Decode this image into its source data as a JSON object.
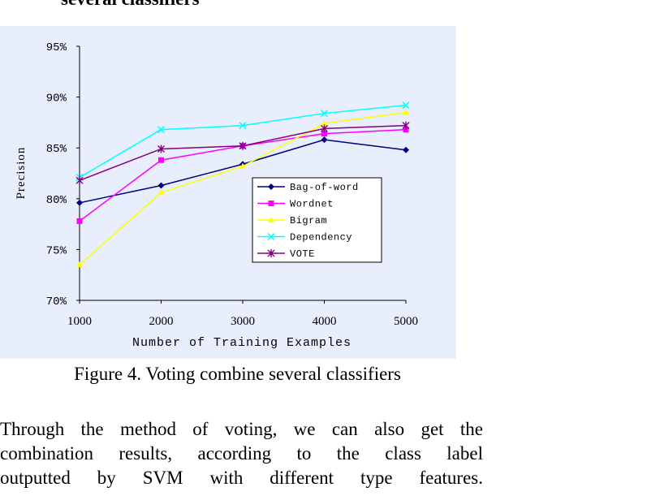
{
  "paper": {
    "cut_heading": "several classifiers",
    "caption": "Figure 4. Voting combine several classifiers",
    "body_lines": [
      "Through the method of voting, we can also get the",
      "combination results, according to the class label",
      "outputted by SVM with different type features."
    ]
  },
  "colors": {
    "plot_background": "#e8eefc",
    "axis": "#000000"
  },
  "chart_data": {
    "type": "line",
    "title": "",
    "xlabel": "Number of Training Examples",
    "ylabel": "Precision",
    "x": [
      1000,
      2000,
      3000,
      4000,
      5000
    ],
    "x_ticks": [
      "1000",
      "2000",
      "3000",
      "4000",
      "5000"
    ],
    "y_ticks": [
      "70%",
      "75%",
      "80%",
      "85%",
      "90%",
      "95%"
    ],
    "ylim": [
      70,
      95
    ],
    "grid": false,
    "legend_position": "lower-right",
    "series": [
      {
        "name": "Bag-of-word",
        "color": "#000080",
        "marker": "diamond",
        "values": [
          79.6,
          81.3,
          83.4,
          85.8,
          84.8
        ]
      },
      {
        "name": "Wordnet",
        "color": "#ff00ff",
        "marker": "square",
        "values": [
          77.8,
          83.8,
          85.2,
          86.4,
          86.8
        ]
      },
      {
        "name": "Bigram",
        "color": "#ffff00",
        "marker": "triangle",
        "values": [
          73.5,
          80.6,
          83.2,
          87.4,
          88.5
        ]
      },
      {
        "name": "Dependency",
        "color": "#00ffff",
        "marker": "x",
        "values": [
          82.1,
          86.8,
          87.2,
          88.4,
          89.2
        ]
      },
      {
        "name": "VOTE",
        "color": "#800080",
        "marker": "star",
        "values": [
          81.8,
          84.9,
          85.2,
          86.9,
          87.2
        ]
      }
    ]
  }
}
